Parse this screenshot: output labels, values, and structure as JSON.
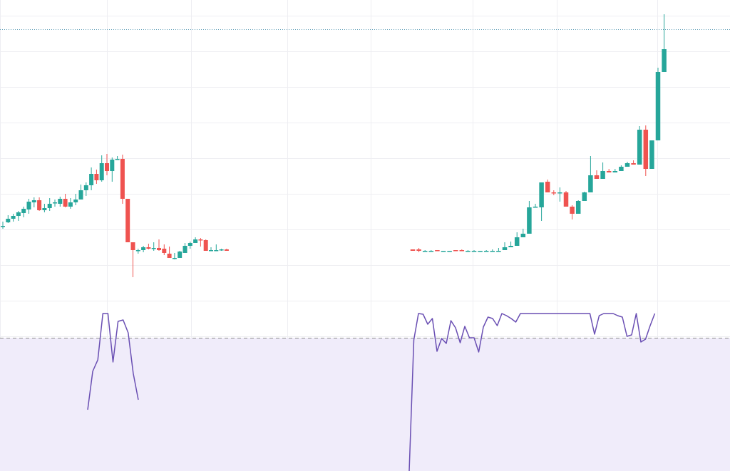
{
  "colors": {
    "up": "#26a69a",
    "down": "#ef5350",
    "grid": "#eeeef2",
    "rsi_line": "#6a4fb3",
    "rsi_band": "#f0ecfa",
    "crosshair": "#5b9bb5",
    "threshold": "#8a8a8a",
    "background": "#ffffff"
  },
  "chart_data": [
    {
      "type": "candlestick",
      "price_axis": "hidden",
      "time_axis": "hidden",
      "grid": true,
      "ylim": [
        0,
        661
      ],
      "ohlc": [
        [
          0,
          370,
          367,
          377,
          371
        ],
        [
          1,
          376,
          375,
          386,
          381
        ],
        [
          2,
          381,
          377,
          388,
          385
        ],
        [
          3,
          385,
          378,
          392,
          390
        ],
        [
          4,
          389,
          383,
          398,
          395
        ],
        [
          5,
          394,
          388,
          409,
          405
        ],
        [
          6,
          404,
          397,
          411,
          407
        ],
        [
          7,
          407,
          392,
          411,
          393
        ],
        [
          8,
          393,
          390,
          402,
          396
        ],
        [
          9,
          396,
          392,
          410,
          402
        ],
        [
          10,
          404,
          398,
          408,
          404
        ],
        [
          11,
          402,
          398,
          412,
          409
        ],
        [
          12,
          409,
          397,
          416,
          398
        ],
        [
          13,
          398,
          395,
          410,
          404
        ],
        [
          14,
          404,
          400,
          416,
          408
        ],
        [
          15,
          408,
          410,
          429,
          421
        ],
        [
          16,
          421,
          413,
          432,
          428
        ],
        [
          17,
          428,
          421,
          453,
          444
        ],
        [
          18,
          444,
          430,
          450,
          435
        ],
        [
          19,
          435,
          433,
          470,
          459
        ],
        [
          20,
          459,
          442,
          472,
          448
        ],
        [
          21,
          448,
          433,
          467,
          464
        ],
        [
          22,
          464,
          464,
          469,
          465
        ],
        [
          23,
          465,
          402,
          471,
          409
        ],
        [
          24,
          409,
          349,
          409,
          348
        ],
        [
          25,
          348,
          299,
          347,
          337
        ],
        [
          26,
          337,
          332,
          339,
          337
        ],
        [
          27,
          337,
          334,
          343,
          341
        ],
        [
          28,
          341,
          338,
          346,
          339
        ],
        [
          29,
          340,
          336,
          348,
          340
        ],
        [
          30,
          340,
          336,
          352,
          337
        ],
        [
          31,
          339,
          330,
          345,
          333
        ],
        [
          32,
          332,
          326,
          342,
          326
        ],
        [
          33,
          326,
          324,
          333,
          326
        ],
        [
          34,
          326,
          331,
          336,
          335
        ],
        [
          35,
          333,
          334,
          347,
          343
        ],
        [
          36,
          343,
          339,
          349,
          347
        ],
        [
          37,
          347,
          347,
          355,
          352
        ],
        [
          38,
          352,
          342,
          354,
          351
        ],
        [
          39,
          351,
          336,
          352,
          336
        ],
        [
          40,
          336,
          336,
          341,
          337
        ],
        [
          41,
          337,
          336,
          345,
          337
        ],
        [
          42,
          337,
          336,
          339,
          338
        ],
        [
          43,
          338,
          336,
          339,
          336
        ]
      ],
      "ohlc_right": [
        [
          0,
          338,
          337,
          338,
          336
        ],
        [
          1,
          338,
          334,
          340,
          336
        ],
        [
          2,
          336,
          336,
          337,
          336
        ],
        [
          3,
          336,
          336,
          337,
          336
        ],
        [
          4,
          337,
          336,
          336,
          336
        ],
        [
          5,
          336,
          335,
          336,
          336
        ],
        [
          6,
          336,
          336,
          336,
          336
        ],
        [
          7,
          337,
          337,
          337,
          336
        ],
        [
          8,
          337,
          337,
          338,
          336
        ],
        [
          9,
          336,
          337,
          336,
          336
        ],
        [
          10,
          336,
          337,
          336,
          336
        ],
        [
          11,
          336,
          336,
          335,
          336
        ],
        [
          12,
          336,
          336,
          337,
          336
        ],
        [
          13,
          336,
          336,
          338,
          336
        ],
        [
          14,
          336,
          338,
          340,
          336
        ],
        [
          15,
          337,
          342,
          348,
          341
        ],
        [
          16,
          341,
          343,
          349,
          343
        ],
        [
          17,
          343,
          345,
          362,
          355
        ],
        [
          18,
          355,
          355,
          367,
          360
        ],
        [
          19,
          360,
          383,
          406,
          397
        ],
        [
          20,
          397,
          402,
          398,
          398
        ],
        [
          21,
          397,
          378,
          424,
          432
        ],
        [
          22,
          433,
          429,
          436,
          418
        ],
        [
          23,
          418,
          414,
          421,
          417
        ],
        [
          24,
          417,
          405,
          425,
          418
        ],
        [
          25,
          418,
          416,
          420,
          398
        ],
        [
          26,
          398,
          400,
          380,
          388
        ],
        [
          27,
          388,
          394,
          407,
          406
        ],
        [
          28,
          406,
          414,
          419,
          418
        ],
        [
          29,
          418,
          447,
          469,
          442
        ],
        [
          30,
          442,
          440,
          449,
          437
        ],
        [
          31,
          437,
          443,
          460,
          448
        ],
        [
          32,
          448,
          446,
          451,
          446
        ],
        [
          33,
          446,
          447,
          451,
          448
        ],
        [
          34,
          448,
          452,
          456,
          454
        ],
        [
          35,
          454,
          455,
          461,
          459
        ],
        [
          36,
          459,
          458,
          463,
          457
        ],
        [
          37,
          457,
          487,
          511,
          506
        ],
        [
          38,
          506,
          441,
          512,
          451
        ],
        [
          39,
          451,
          454,
          479,
          491
        ],
        [
          40,
          491,
          583,
          593,
          587
        ],
        [
          41,
          587,
          612,
          668,
          619
        ]
      ]
    },
    {
      "type": "line",
      "indicator": "RSI",
      "threshold_line": "dashed",
      "band": true,
      "series_left": [
        [
          0,
          86
        ],
        [
          1,
          140
        ],
        [
          2,
          156
        ],
        [
          3,
          228
        ],
        [
          4,
          226
        ],
        [
          5,
          153
        ],
        [
          6,
          210
        ],
        [
          7,
          212
        ],
        [
          8,
          194
        ],
        [
          9,
          137
        ],
        [
          10,
          100
        ]
      ],
      "series_right": [
        [
          0,
          0
        ],
        [
          1,
          184
        ],
        [
          2,
          242
        ],
        [
          3,
          220
        ],
        [
          4,
          206
        ],
        [
          5,
          214
        ],
        [
          6,
          168
        ],
        [
          7,
          186
        ],
        [
          8,
          179
        ],
        [
          9,
          211
        ],
        [
          10,
          201
        ],
        [
          11,
          180
        ],
        [
          12,
          203
        ],
        [
          13,
          187
        ],
        [
          14,
          187
        ],
        [
          15,
          167
        ],
        [
          16,
          202
        ],
        [
          17,
          216
        ],
        [
          18,
          214
        ],
        [
          19,
          204
        ],
        [
          20,
          222
        ],
        [
          21,
          218
        ],
        [
          22,
          214
        ],
        [
          23,
          209
        ],
        [
          24,
          232
        ],
        [
          25,
          247
        ],
        [
          26,
          248
        ],
        [
          27,
          247
        ],
        [
          28,
          272
        ],
        [
          29,
          280
        ],
        [
          30,
          274
        ],
        [
          31,
          244
        ],
        [
          32,
          231
        ],
        [
          33,
          231
        ],
        [
          34,
          225
        ],
        [
          35,
          222
        ],
        [
          36,
          244
        ],
        [
          37,
          228
        ],
        [
          38,
          228
        ],
        [
          39,
          237
        ],
        [
          40,
          192
        ],
        [
          41,
          218
        ],
        [
          42,
          221
        ],
        [
          43,
          222
        ],
        [
          44,
          221
        ],
        [
          45,
          218
        ],
        [
          46,
          216
        ],
        [
          47,
          189
        ],
        [
          48,
          191
        ],
        [
          49,
          226
        ],
        [
          50,
          181
        ],
        [
          51,
          185
        ],
        [
          52,
          204
        ],
        [
          53,
          221
        ]
      ]
    }
  ]
}
